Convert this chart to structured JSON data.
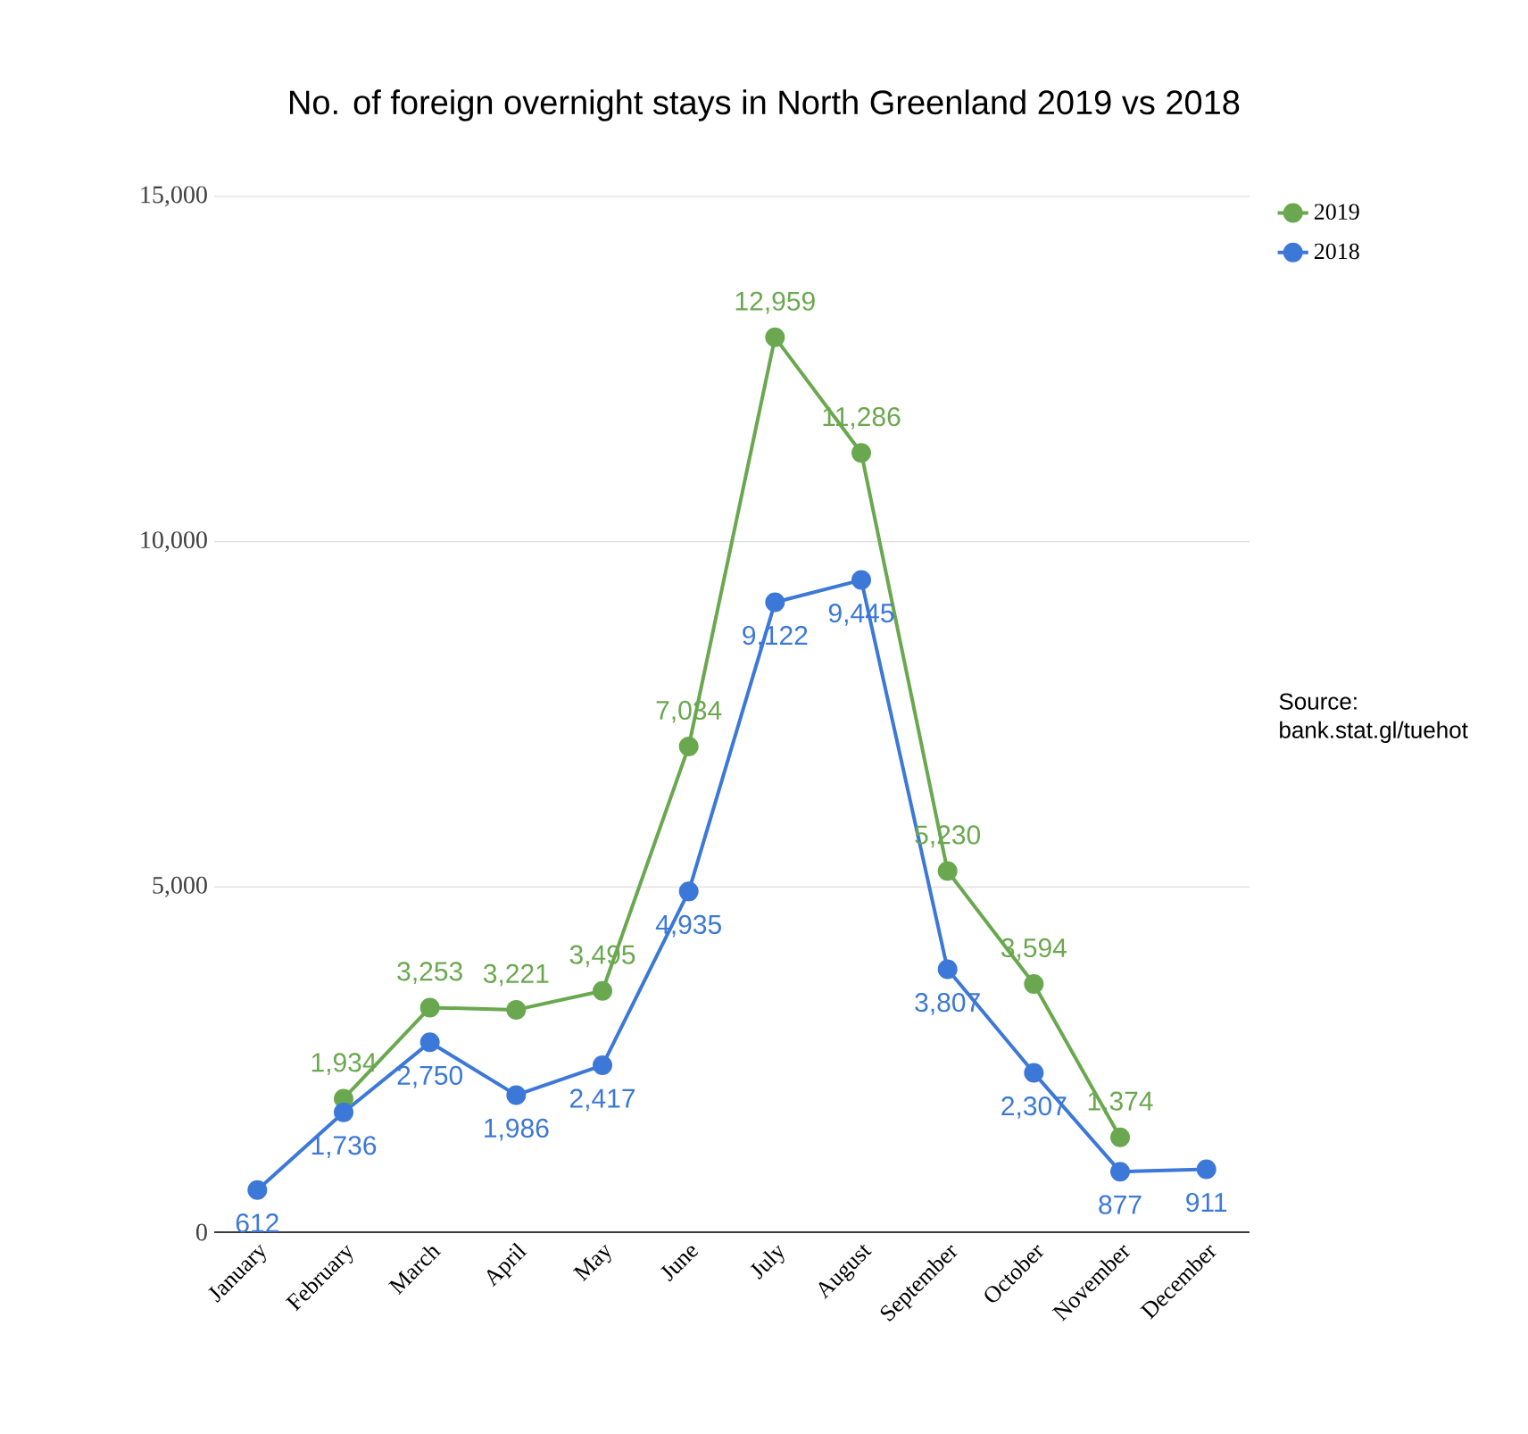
{
  "chart_data": {
    "type": "line",
    "title": "No. of foreign overnight stays in North Greenland 2019 vs 2018",
    "categories": [
      "January",
      "February",
      "March",
      "April",
      "May",
      "June",
      "July",
      "August",
      "September",
      "October",
      "November",
      "December"
    ],
    "series": [
      {
        "name": "2019",
        "color": "#6aa84f",
        "values": [
          null,
          1934,
          3253,
          3221,
          3495,
          7034,
          12959,
          11286,
          5230,
          3594,
          1374,
          null
        ],
        "value_labels": [
          null,
          "1,934",
          "3,253",
          "3,221",
          "3,495",
          "7,034",
          "12,959",
          "11,286",
          "5,230",
          "3,594",
          "1,374",
          null
        ]
      },
      {
        "name": "2018",
        "color": "#3c78d8",
        "values": [
          612,
          1736,
          2750,
          1986,
          2417,
          4935,
          9122,
          9445,
          3807,
          2307,
          877,
          911
        ],
        "value_labels": [
          "612",
          "1,736",
          "2,750",
          "1,986",
          "2,417",
          "4,935",
          "9,122",
          "9,445",
          "3,807",
          "2,307",
          "877",
          "911"
        ]
      }
    ],
    "ylim": [
      0,
      15000
    ],
    "yticks": [
      {
        "value": 0,
        "label": "0"
      },
      {
        "value": 5000,
        "label": "5,000"
      },
      {
        "value": 10000,
        "label": "10,000"
      },
      {
        "value": 15000,
        "label": "15,000"
      }
    ],
    "grid": "y",
    "legend": "top right",
    "marker": "circle",
    "line_style": "solid",
    "annotations": [
      "Source: bank.stat.gl/tuehot"
    ]
  }
}
